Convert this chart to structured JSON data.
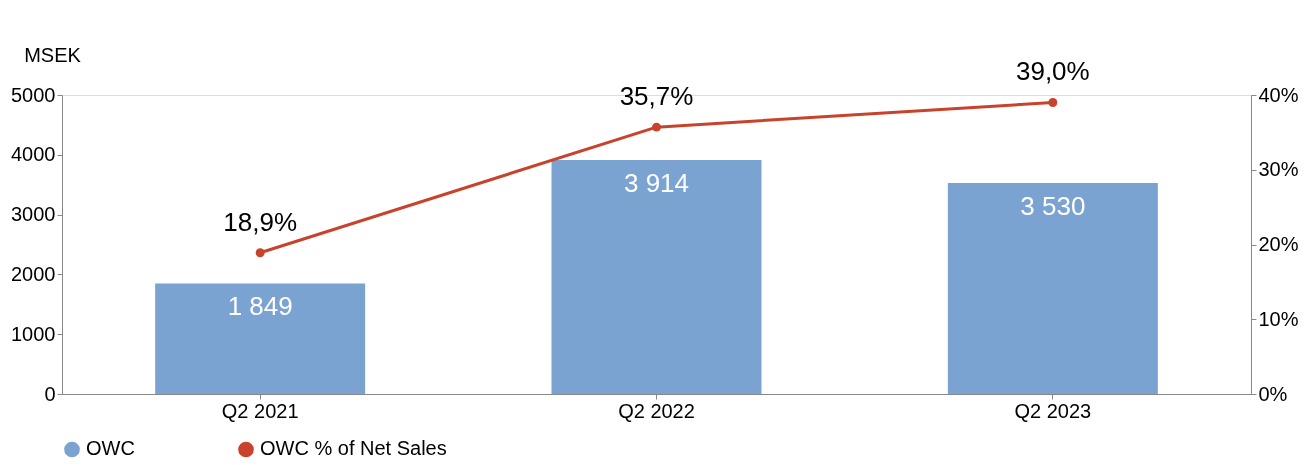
{
  "chart_data": {
    "type": "bar",
    "categories": [
      "Q2 2021",
      "Q2 2022",
      "Q2 2023"
    ],
    "ylabel": "MSEK",
    "ylim": [
      0,
      5000
    ],
    "yticks": [
      0,
      1000,
      2000,
      3000,
      4000,
      5000
    ],
    "y2lim": [
      0,
      40
    ],
    "y2ticks": [
      {
        "value": 0,
        "label": "0%"
      },
      {
        "value": 10,
        "label": "10%"
      },
      {
        "value": 20,
        "label": "20%"
      },
      {
        "value": 30,
        "label": "30%"
      },
      {
        "value": 40,
        "label": "40%"
      }
    ],
    "series": [
      {
        "name": "OWC",
        "color": "#7ba3d1",
        "values": [
          1849,
          3914,
          3530
        ],
        "value_labels": [
          "1 849",
          "3 914",
          "3 530"
        ]
      },
      {
        "name": "OWC % of Net Sales",
        "type": "line",
        "axis": "y2",
        "color": "#c8432c",
        "marker": "circle",
        "values": [
          18.9,
          35.7,
          39.0
        ],
        "value_labels": [
          "18,9%",
          "35,7%",
          "39,0%"
        ]
      }
    ],
    "legend": "bottom",
    "grid": false
  }
}
